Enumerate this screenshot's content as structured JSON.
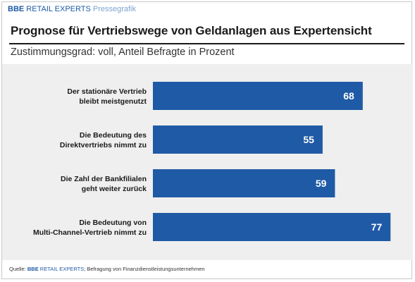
{
  "header": {
    "brand_bold": "BBE",
    "brand_name": "RETAIL EXPERTS",
    "brand_sub": "Pressegrafik"
  },
  "chart_data": {
    "type": "bar",
    "orientation": "horizontal",
    "title": "Prognose für Vertriebswege von Geldanlagen aus Expertensicht",
    "subtitle": "Zustimmungsgrad: voll, Anteil Befragte in Prozent",
    "categories": [
      [
        "Der stationäre Vertrieb",
        "bleibt meistgenutzt"
      ],
      [
        "Die Bedeutung des",
        "Direktvertriebs nimmt zu"
      ],
      [
        "Die Zahl der Bankfilialen",
        "geht weiter zurück"
      ],
      [
        "Die Bedeutung von",
        "Multi-Channel-Vertrieb nimmt zu"
      ]
    ],
    "values": [
      68,
      55,
      59,
      77
    ],
    "xlim": [
      0,
      100
    ],
    "bar_color": "#1f5aa6",
    "label_color": "#ffffff",
    "grid": false,
    "legend": "none"
  },
  "footer": {
    "prefix": "Quelle:",
    "source_bbe": "BBE",
    "source_name": "RETAIL EXPERTS",
    "source_rest": "; Befragung von Finanzdienstleistungsunternehmen"
  }
}
